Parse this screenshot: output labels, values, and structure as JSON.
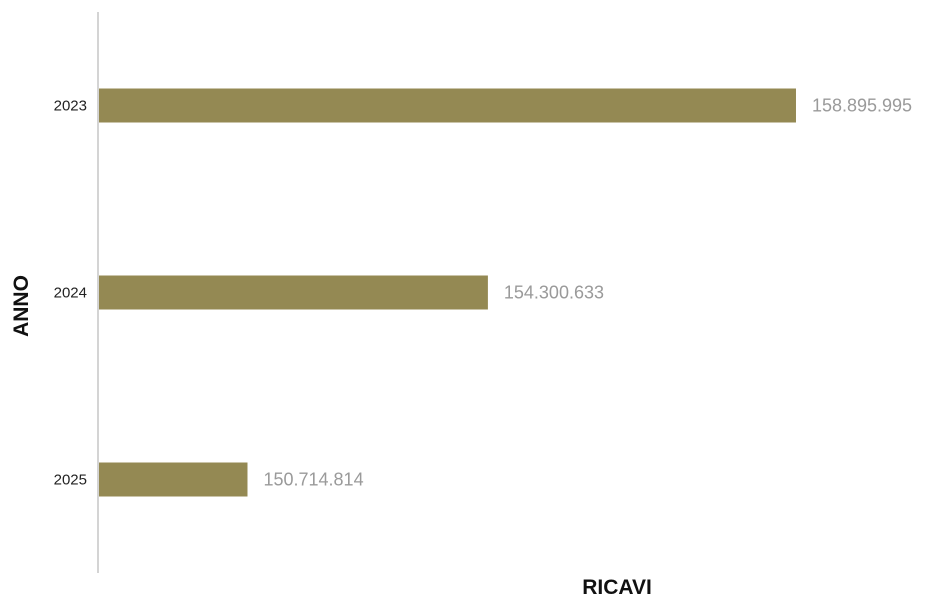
{
  "chart_data": {
    "type": "bar",
    "orientation": "horizontal",
    "categories": [
      "2023",
      "2024",
      "2025"
    ],
    "values": [
      158895995,
      154300633,
      150714814
    ],
    "value_labels": [
      "158.895.995",
      "154.300.633",
      "150.714.814"
    ],
    "xlabel": "RICAVI",
    "ylabel": "ANNO",
    "xlim": [
      148500000,
      160000000
    ],
    "grid": false,
    "bar_color": "#948953"
  }
}
